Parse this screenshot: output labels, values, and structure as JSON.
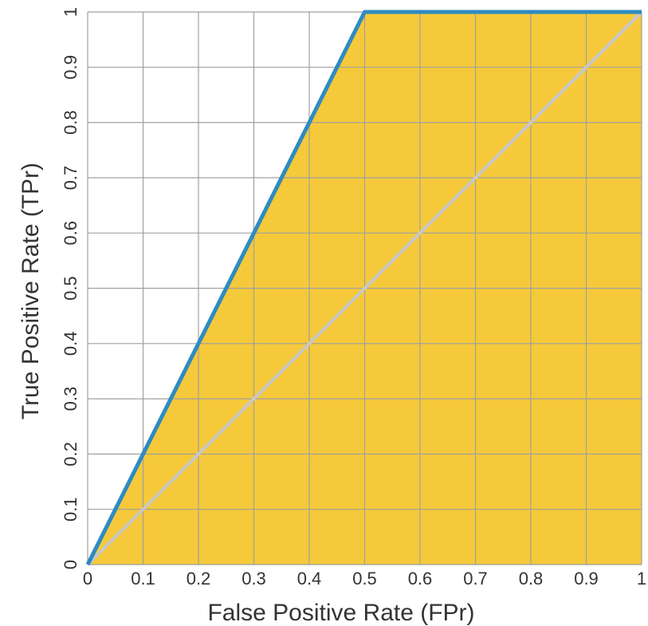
{
  "chart_data": {
    "type": "area",
    "xlabel": "False Positive Rate (FPr)",
    "ylabel": "True Positive Rate (TPr)",
    "xlim": [
      0,
      1
    ],
    "ylim": [
      0,
      1
    ],
    "x_ticks": [
      "0",
      "0.1",
      "0.2",
      "0.3",
      "0.4",
      "0.5",
      "0.6",
      "0.7",
      "0.8",
      "0.9",
      "1"
    ],
    "y_ticks": [
      "0",
      "0.1",
      "0.2",
      "0.3",
      "0.4",
      "0.5",
      "0.6",
      "0.7",
      "0.8",
      "0.9",
      "1"
    ],
    "x_tick_values": [
      0,
      0.1,
      0.2,
      0.3,
      0.4,
      0.5,
      0.6,
      0.7,
      0.8,
      0.9,
      1
    ],
    "y_tick_values": [
      0,
      0.1,
      0.2,
      0.3,
      0.4,
      0.5,
      0.6,
      0.7,
      0.8,
      0.9,
      1
    ],
    "grid": true,
    "series": [
      {
        "x": [
          0,
          0.1,
          0.2,
          0.3,
          0.4,
          0.5,
          1
        ],
        "y": [
          0,
          0.2,
          0.4,
          0.6,
          0.8,
          1,
          1
        ],
        "color": "#2e8bc0",
        "fill": "#f5c93a"
      },
      {
        "x": [
          0,
          1
        ],
        "y": [
          0,
          1
        ],
        "color": "#c8c8c8"
      }
    ]
  }
}
